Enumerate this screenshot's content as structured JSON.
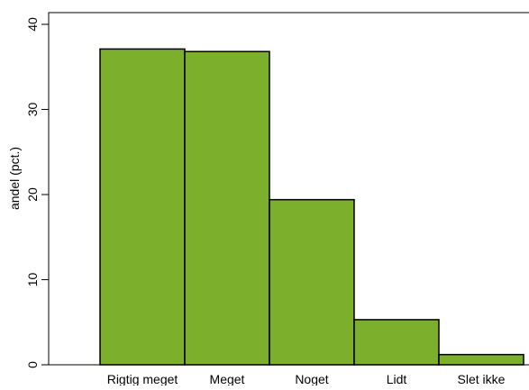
{
  "chart_data": {
    "type": "bar",
    "categories": [
      "Rigtig meget",
      "Meget",
      "Noget",
      "Lidt",
      "Slet ikke"
    ],
    "values": [
      37.1,
      36.8,
      19.4,
      5.3,
      1.2
    ],
    "ylabel": "andel (pct.)",
    "xlabel": "",
    "ylim": [
      0,
      40
    ],
    "yticks": [
      0,
      10,
      20,
      30,
      40
    ],
    "grid": false,
    "bar_color": "#7cb02c",
    "bar_edge_color": "#000000"
  }
}
